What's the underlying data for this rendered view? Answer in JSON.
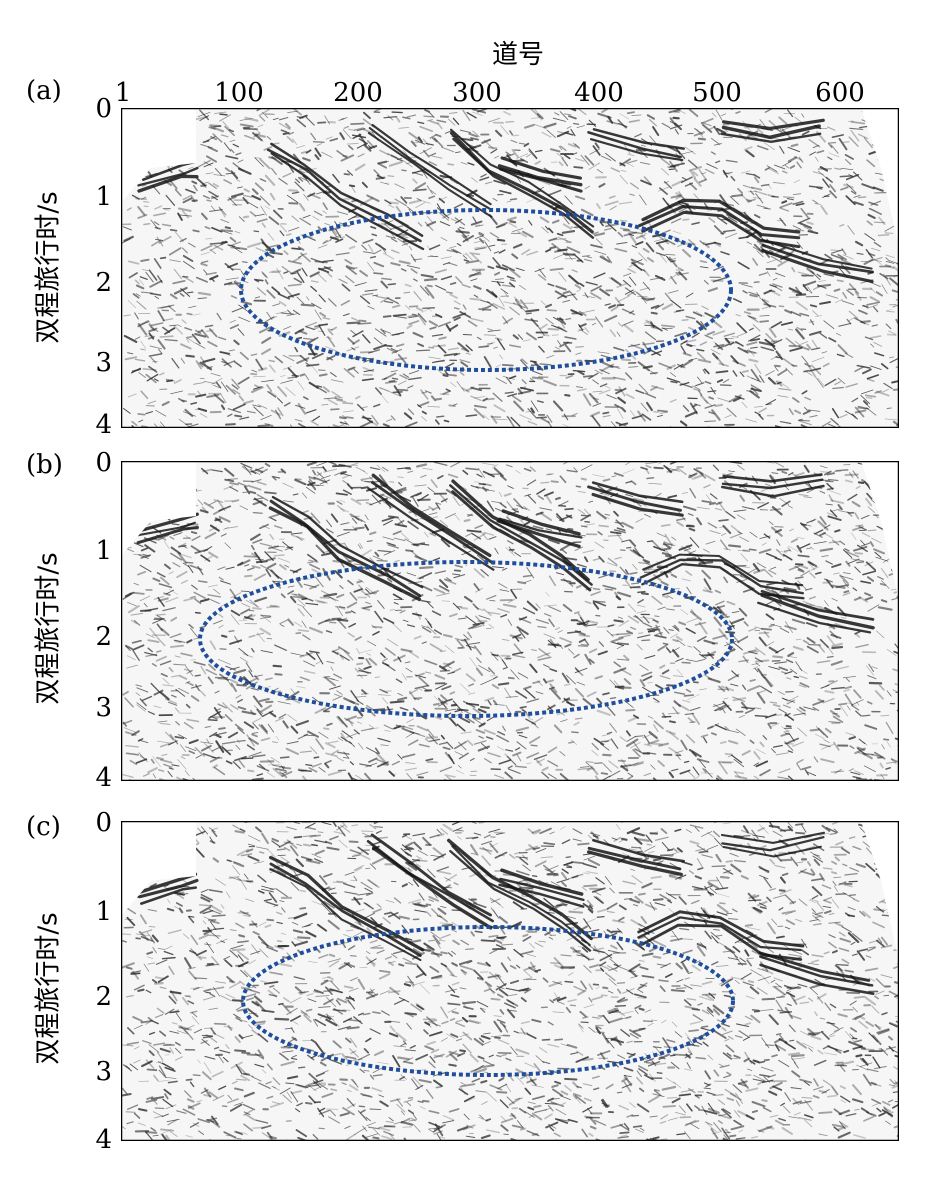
{
  "figure": {
    "x_axis_title": "道号",
    "x_ticks": [
      "1",
      "100",
      "200",
      "300",
      "400",
      "500",
      "600"
    ],
    "y_axis_title": "双程旅行时/s",
    "y_ticks": [
      "0",
      "1",
      "2",
      "3",
      "4"
    ],
    "panels": [
      {
        "label": "(a)"
      },
      {
        "label": "(b)"
      },
      {
        "label": "(c)"
      }
    ],
    "ellipse_color": "#1f4e9c",
    "trace_color": "#2b2b2b"
  }
}
